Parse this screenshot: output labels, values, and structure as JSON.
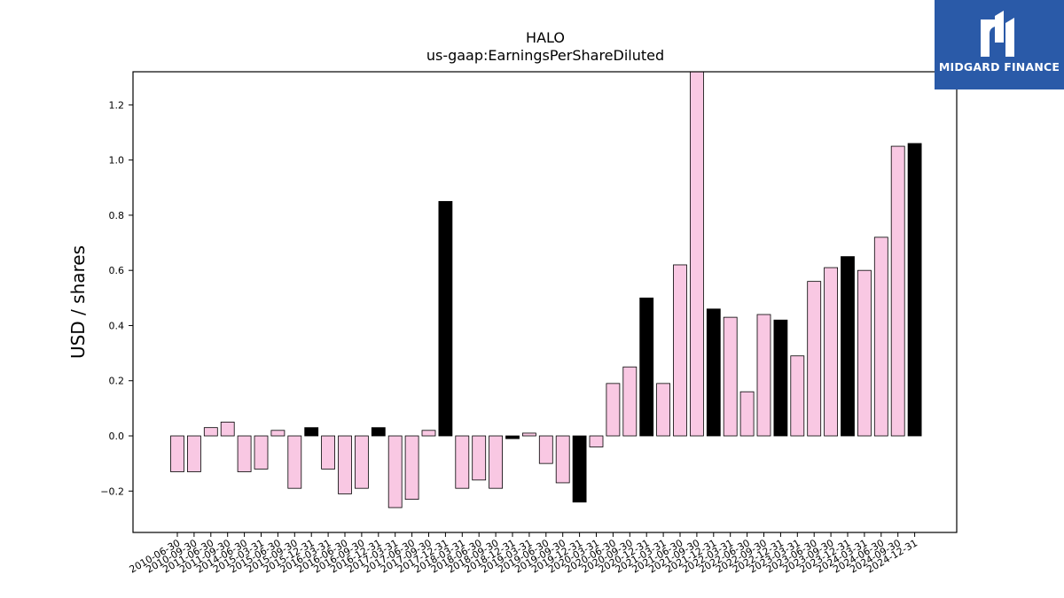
{
  "chart_data": {
    "type": "bar",
    "title": "HALO",
    "subtitle": "us-gaap:EarningsPerShareDiluted",
    "xlabel": "",
    "ylabel": "USD / shares",
    "ylim": [
      -0.35,
      1.32
    ],
    "yticks": [
      -0.2,
      0.0,
      0.2,
      0.4,
      0.6,
      0.8,
      1.0,
      1.2
    ],
    "ytick_labels": [
      "−0.2",
      "0.0",
      "0.2",
      "0.4",
      "0.6",
      "0.8",
      "1.0",
      "1.2"
    ],
    "grid": false,
    "legend": "none",
    "colors": {
      "quarter": "#f9c8e3",
      "annual": "#000000",
      "edge": "#000000"
    },
    "categories": [
      "2010-06-30",
      "2010-09-30",
      "2011-06-30",
      "2011-09-30",
      "2014-06-30",
      "2015-03-31",
      "2015-06-30",
      "2015-09-30",
      "2015-12-31",
      "2016-03-31",
      "2016-06-30",
      "2016-09-30",
      "2016-12-31",
      "2017-03-31",
      "2017-06-30",
      "2017-09-30",
      "2017-12-31",
      "2018-03-31",
      "2018-06-30",
      "2018-09-30",
      "2018-12-31",
      "2019-03-31",
      "2019-06-30",
      "2019-09-30",
      "2019-12-31",
      "2020-03-31",
      "2020-06-30",
      "2020-09-30",
      "2020-12-31",
      "2021-03-31",
      "2021-06-30",
      "2021-09-30",
      "2021-12-31",
      "2022-03-31",
      "2022-06-30",
      "2022-09-30",
      "2022-12-31",
      "2023-03-31",
      "2023-06-30",
      "2023-09-30",
      "2023-12-31",
      "2024-03-31",
      "2024-06-30",
      "2024-09-30",
      "2024-12-31"
    ],
    "values": [
      -0.13,
      -0.13,
      0.03,
      0.05,
      -0.13,
      -0.12,
      0.02,
      -0.19,
      0.03,
      -0.12,
      -0.21,
      -0.19,
      0.03,
      -0.26,
      -0.23,
      0.02,
      0.85,
      -0.19,
      -0.16,
      -0.19,
      -0.01,
      0.01,
      -0.1,
      -0.17,
      -0.24,
      -0.04,
      0.19,
      0.25,
      0.5,
      0.19,
      0.62,
      1.34,
      0.46,
      0.43,
      0.16,
      0.44,
      0.42,
      0.29,
      0.56,
      0.61,
      0.65,
      0.6,
      0.72,
      1.05,
      1.06
    ],
    "annual": [
      false,
      false,
      false,
      false,
      false,
      false,
      false,
      false,
      true,
      false,
      false,
      false,
      true,
      false,
      false,
      false,
      true,
      false,
      false,
      false,
      true,
      false,
      false,
      false,
      true,
      false,
      false,
      false,
      true,
      false,
      false,
      false,
      true,
      false,
      false,
      false,
      true,
      false,
      false,
      false,
      true,
      false,
      false,
      false,
      true
    ]
  },
  "logo": {
    "text": "MIDGARD FINANCE",
    "icon": "midgard-logo-icon",
    "background": "#2a5aa8"
  }
}
